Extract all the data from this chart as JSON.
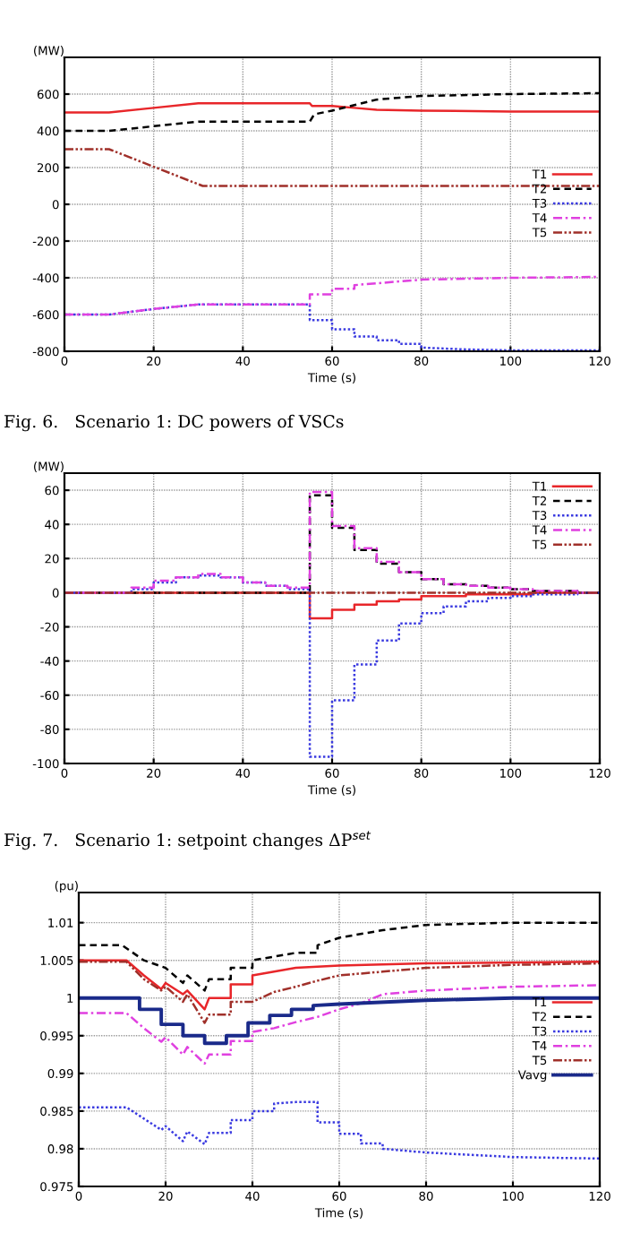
{
  "chart_data": [
    {
      "type": "line",
      "ylabel": "(MW)",
      "xlabel": "Time (s)",
      "annotations": [
        "Fig. 6.   Scenario 1: DC powers of VSCs"
      ],
      "xlim": [
        0,
        120
      ],
      "xticks": [
        0,
        20,
        40,
        60,
        80,
        100,
        120
      ],
      "ylim": [
        -800,
        800
      ],
      "yticks": [
        -800,
        -600,
        -400,
        -200,
        0,
        200,
        400,
        600
      ],
      "grid": true,
      "legend": "right",
      "series": [
        {
          "name": "T1",
          "color": "#e8262a",
          "line_style": "solid",
          "x": [
            0,
            10,
            20,
            30,
            55,
            55.5,
            60,
            65,
            70,
            80,
            100,
            120
          ],
          "values": [
            500,
            500,
            525,
            550,
            550,
            535,
            535,
            525,
            515,
            510,
            505,
            505
          ]
        },
        {
          "name": "T2",
          "color": "#000000",
          "line_style": "dashed",
          "x": [
            0,
            10,
            20,
            30,
            55,
            56,
            60,
            65,
            70,
            80,
            100,
            120
          ],
          "values": [
            400,
            400,
            425,
            450,
            450,
            490,
            510,
            540,
            570,
            590,
            600,
            605
          ]
        },
        {
          "name": "T3",
          "color": "#3a3ae0",
          "line_style": "dotted",
          "x": [
            0,
            10,
            20,
            30,
            55,
            55,
            60,
            60,
            65,
            65,
            70,
            70,
            75,
            75,
            80,
            80,
            90,
            100,
            120
          ],
          "values": [
            -600,
            -600,
            -570,
            -545,
            -545,
            -630,
            -630,
            -680,
            -680,
            -720,
            -720,
            -740,
            -740,
            -760,
            -760,
            -780,
            -790,
            -795,
            -795
          ]
        },
        {
          "name": "T4",
          "color": "#e040e0",
          "line_style": "dashdot",
          "x": [
            0,
            10,
            20,
            30,
            55,
            55,
            60,
            60,
            65,
            65,
            70,
            80,
            100,
            120
          ],
          "values": [
            -600,
            -600,
            -570,
            -545,
            -545,
            -490,
            -490,
            -460,
            -460,
            -440,
            -430,
            -410,
            -400,
            -395
          ]
        },
        {
          "name": "T5",
          "color": "#a0302a",
          "line_style": "dashdotdot",
          "x": [
            0,
            10,
            31,
            120
          ],
          "values": [
            300,
            300,
            100,
            100
          ]
        }
      ]
    },
    {
      "type": "step",
      "ylabel": "(MW)",
      "xlabel": "Time (s)",
      "annotations": [
        "Fig. 7.   Scenario 1: setpoint changes ΔP$^{set}$"
      ],
      "xlim": [
        0,
        120
      ],
      "xticks": [
        0,
        20,
        40,
        60,
        80,
        100,
        120
      ],
      "ylim": [
        -100,
        70
      ],
      "yticks": [
        -100,
        -80,
        -60,
        -40,
        -20,
        0,
        20,
        40,
        60
      ],
      "grid": true,
      "legend": "top right",
      "x": [
        0,
        5,
        10,
        15,
        20,
        25,
        30,
        35,
        40,
        45,
        50,
        55,
        60,
        65,
        70,
        75,
        80,
        85,
        90,
        95,
        100,
        105,
        110,
        115,
        120
      ],
      "series": [
        {
          "name": "T1",
          "color": "#e8262a",
          "line_style": "solid",
          "values": [
            0,
            0,
            0,
            0,
            0,
            0,
            0,
            0,
            0,
            0,
            0,
            -15,
            -10,
            -7,
            -5,
            -4,
            -2,
            -2,
            -1,
            -1,
            -1,
            0,
            0,
            0,
            0
          ]
        },
        {
          "name": "T2",
          "color": "#000000",
          "line_style": "dashed",
          "values": [
            0,
            0,
            0,
            0,
            0,
            0,
            0,
            0,
            0,
            0,
            0,
            57,
            38,
            25,
            17,
            12,
            8,
            5,
            4,
            3,
            2,
            1,
            1,
            0,
            0
          ]
        },
        {
          "name": "T3",
          "color": "#3a3ae0",
          "line_style": "dotted",
          "values": [
            0,
            0,
            0,
            2,
            6,
            9,
            10,
            9,
            6,
            4,
            2,
            -96,
            -63,
            -42,
            -28,
            -18,
            -12,
            -8,
            -5,
            -3,
            -2,
            -1,
            -1,
            0,
            0
          ]
        },
        {
          "name": "T4",
          "color": "#e040e0",
          "line_style": "dashdot",
          "values": [
            0,
            0,
            0,
            3,
            7,
            9,
            11,
            9,
            6,
            4,
            3,
            59,
            39,
            26,
            18,
            12,
            8,
            5,
            4,
            3,
            2,
            1,
            1,
            0,
            0
          ]
        },
        {
          "name": "T5",
          "color": "#a0302a",
          "line_style": "dashdotdot",
          "values": [
            0,
            0,
            0,
            0,
            0,
            0,
            0,
            0,
            0,
            0,
            0,
            0,
            0,
            0,
            0,
            0,
            0,
            0,
            0,
            0,
            0,
            0,
            0,
            0,
            0
          ]
        }
      ]
    },
    {
      "type": "line",
      "ylabel": "(pu)",
      "xlabel": "Time (s)",
      "xlim": [
        0,
        120
      ],
      "xticks": [
        0,
        20,
        40,
        60,
        80,
        100,
        120
      ],
      "ylim": [
        0.975,
        1.014
      ],
      "yticks": [
        0.975,
        0.98,
        0.985,
        0.99,
        0.995,
        1,
        1.005,
        1.01
      ],
      "grid": true,
      "legend": "right",
      "series": [
        {
          "name": "T1",
          "color": "#e8262a",
          "line_style": "solid",
          "x": [
            0,
            11,
            15,
            19,
            20,
            24,
            25,
            29,
            30,
            35,
            35,
            40,
            40,
            45,
            50,
            60,
            80,
            120
          ],
          "values": [
            1.005,
            1.005,
            1.003,
            1.0012,
            1.002,
            1.0005,
            1.001,
            0.9985,
            1.0,
            1.0,
            1.0018,
            1.0018,
            1.003,
            1.0035,
            1.004,
            1.0043,
            1.0046,
            1.0048
          ]
        },
        {
          "name": "T2",
          "color": "#000000",
          "line_style": "dashed",
          "x": [
            0,
            10,
            15,
            20,
            24,
            25,
            29,
            30,
            35,
            35,
            40,
            40,
            50,
            55,
            55,
            60,
            70,
            80,
            100,
            120
          ],
          "values": [
            1.007,
            1.007,
            1.005,
            1.004,
            1.002,
            1.003,
            1.001,
            1.0025,
            1.0025,
            1.004,
            1.004,
            1.005,
            1.006,
            1.006,
            1.007,
            1.008,
            1.009,
            1.0097,
            1.01,
            1.01
          ]
        },
        {
          "name": "T3",
          "color": "#3a3ae0",
          "line_style": "dotted",
          "x": [
            0,
            11,
            15,
            19,
            20,
            24,
            25,
            29,
            30,
            35,
            35,
            40,
            40,
            45,
            45,
            50,
            55,
            55,
            60,
            60,
            65,
            65,
            70,
            70,
            80,
            100,
            120
          ],
          "values": [
            0.9855,
            0.9855,
            0.984,
            0.9825,
            0.983,
            0.981,
            0.9823,
            0.9806,
            0.9821,
            0.9821,
            0.9838,
            0.9838,
            0.985,
            0.985,
            0.986,
            0.9862,
            0.9862,
            0.9835,
            0.9835,
            0.982,
            0.982,
            0.9807,
            0.9807,
            0.98,
            0.9795,
            0.9789,
            0.9787
          ]
        },
        {
          "name": "T4",
          "color": "#e040e0",
          "line_style": "dashdot",
          "x": [
            0,
            11,
            15,
            19,
            20,
            24,
            25,
            29,
            30,
            35,
            35,
            40,
            40,
            45,
            50,
            55,
            60,
            65,
            70,
            80,
            100,
            120
          ],
          "values": [
            0.998,
            0.998,
            0.996,
            0.9942,
            0.9948,
            0.9925,
            0.9935,
            0.9913,
            0.9925,
            0.9925,
            0.9943,
            0.9943,
            0.9955,
            0.996,
            0.9968,
            0.9975,
            0.9985,
            0.9993,
            1.0005,
            1.001,
            1.0015,
            1.0017
          ]
        },
        {
          "name": "T5",
          "color": "#a0302a",
          "line_style": "dashdotdot",
          "x": [
            0,
            11,
            15,
            19,
            20,
            24,
            25,
            29,
            30,
            35,
            35,
            40,
            45,
            50,
            55,
            60,
            70,
            80,
            100,
            120
          ],
          "values": [
            1.0048,
            1.0048,
            1.0025,
            1.001,
            1.0015,
            0.9995,
            1.0005,
            0.9967,
            0.9978,
            0.9978,
            0.9995,
            0.9995,
            1.0008,
            1.0015,
            1.0023,
            1.003,
            1.0035,
            1.004,
            1.0044,
            1.0046
          ]
        },
        {
          "name": "Vavg",
          "color": "#1a2a8a",
          "line_style": "solid",
          "x": [
            0,
            14,
            14,
            19,
            19,
            24,
            24,
            29,
            29,
            34,
            34,
            39,
            39,
            44,
            44,
            49,
            49,
            54,
            54,
            60,
            80,
            100,
            120
          ],
          "values": [
            1.0,
            1.0,
            0.9985,
            0.9985,
            0.9965,
            0.9965,
            0.995,
            0.995,
            0.994,
            0.994,
            0.995,
            0.995,
            0.9967,
            0.9967,
            0.9977,
            0.9977,
            0.9985,
            0.9985,
            0.999,
            0.9992,
            0.9997,
            1.0,
            1.0
          ]
        }
      ]
    }
  ]
}
